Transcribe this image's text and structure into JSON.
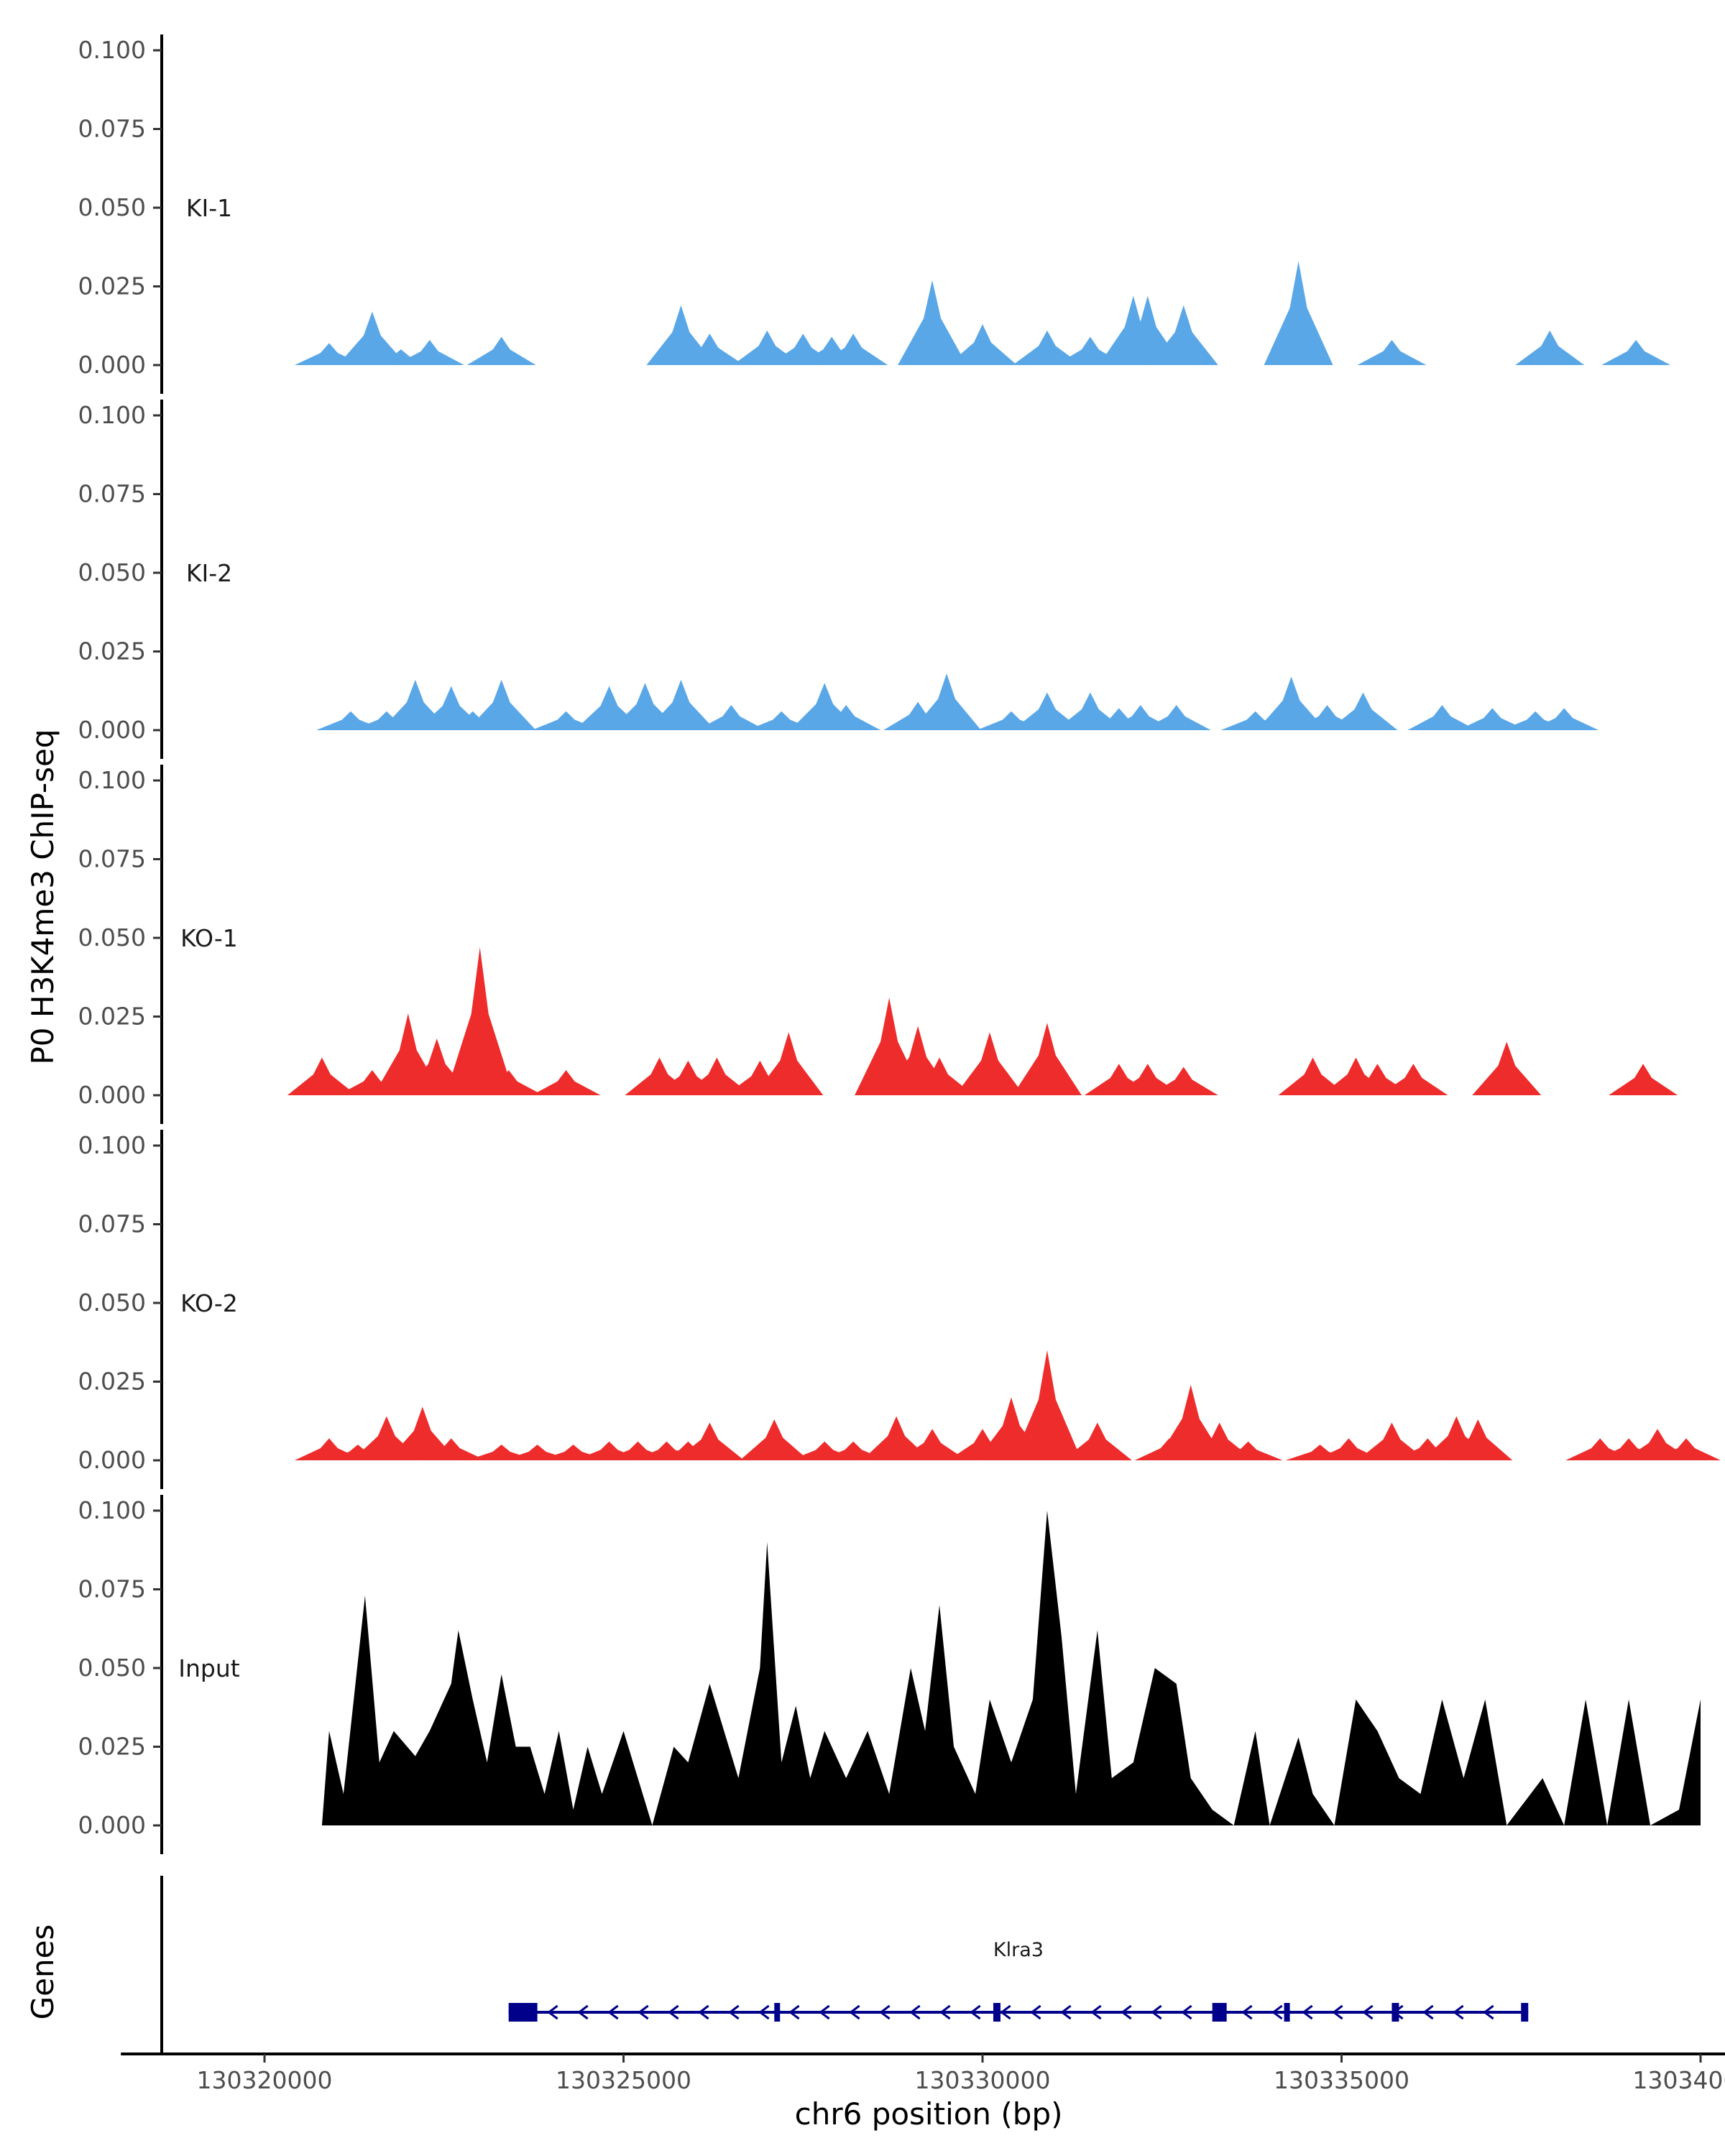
{
  "chart_data": {
    "type": "area",
    "ylabel": "P0 H3K4me3 ChIP-seq",
    "xlabel": "chr6 position (bp)",
    "genes_label": "Genes",
    "xlim": [
      130318000,
      130340500
    ],
    "ylim": [
      0,
      0.1
    ],
    "y_ticks": [
      0,
      0.025,
      0.05,
      0.075,
      0.1
    ],
    "y_tick_labels": [
      "0.000",
      "0.025",
      "0.050",
      "0.075",
      "0.100"
    ],
    "x_ticks": [
      130320000,
      130325000,
      130330000,
      130335000,
      130340000
    ],
    "x_tick_labels": [
      "130320000",
      "130325000",
      "130330000",
      "130335000",
      "130340000"
    ],
    "tracks": [
      {
        "name": "KI-1",
        "color": "#5aa7e8",
        "peaks": [
          [
            130320900,
            0.007
          ],
          [
            130321500,
            0.017
          ],
          [
            130321900,
            0.005
          ],
          [
            130322300,
            0.008
          ],
          [
            130323300,
            0.009
          ],
          [
            130325800,
            0.019
          ],
          [
            130326200,
            0.01
          ],
          [
            130327000,
            0.011
          ],
          [
            130327500,
            0.01
          ],
          [
            130327900,
            0.009
          ],
          [
            130328200,
            0.01
          ],
          [
            130329300,
            0.027
          ],
          [
            130330000,
            0.013
          ],
          [
            130330900,
            0.011
          ],
          [
            130331500,
            0.009
          ],
          [
            130332100,
            0.022
          ],
          [
            130332300,
            0.022
          ],
          [
            130332800,
            0.019
          ],
          [
            130334400,
            0.033
          ],
          [
            130335700,
            0.008
          ],
          [
            130337900,
            0.011
          ],
          [
            130339100,
            0.008
          ]
        ]
      },
      {
        "name": "KI-2",
        "color": "#5aa7e8",
        "peaks": [
          [
            130321200,
            0.006
          ],
          [
            130321700,
            0.006
          ],
          [
            130322100,
            0.016
          ],
          [
            130322600,
            0.014
          ],
          [
            130322900,
            0.006
          ],
          [
            130323300,
            0.016
          ],
          [
            130324200,
            0.006
          ],
          [
            130324800,
            0.014
          ],
          [
            130325300,
            0.015
          ],
          [
            130325800,
            0.016
          ],
          [
            130326500,
            0.008
          ],
          [
            130327200,
            0.006
          ],
          [
            130327800,
            0.015
          ],
          [
            130328100,
            0.008
          ],
          [
            130329100,
            0.009
          ],
          [
            130329500,
            0.018
          ],
          [
            130330400,
            0.006
          ],
          [
            130330900,
            0.012
          ],
          [
            130331500,
            0.012
          ],
          [
            130331900,
            0.007
          ],
          [
            130332200,
            0.008
          ],
          [
            130332700,
            0.008
          ],
          [
            130333800,
            0.006
          ],
          [
            130334300,
            0.017
          ],
          [
            130334800,
            0.008
          ],
          [
            130335300,
            0.012
          ],
          [
            130336400,
            0.008
          ],
          [
            130337100,
            0.007
          ],
          [
            130337700,
            0.006
          ],
          [
            130338100,
            0.007
          ]
        ]
      },
      {
        "name": "KO-1",
        "color": "#ee2c2c",
        "peaks": [
          [
            130320800,
            0.012
          ],
          [
            130321500,
            0.008
          ],
          [
            130322000,
            0.026
          ],
          [
            130322400,
            0.018
          ],
          [
            130323000,
            0.047
          ],
          [
            130323400,
            0.008
          ],
          [
            130324200,
            0.008
          ],
          [
            130325500,
            0.012
          ],
          [
            130325900,
            0.011
          ],
          [
            130326300,
            0.012
          ],
          [
            130326900,
            0.011
          ],
          [
            130327300,
            0.02
          ],
          [
            130328700,
            0.031
          ],
          [
            130329100,
            0.022
          ],
          [
            130329400,
            0.012
          ],
          [
            130330100,
            0.02
          ],
          [
            130330900,
            0.023
          ],
          [
            130331900,
            0.01
          ],
          [
            130332300,
            0.01
          ],
          [
            130332800,
            0.009
          ],
          [
            130334600,
            0.012
          ],
          [
            130335200,
            0.012
          ],
          [
            130335500,
            0.01
          ],
          [
            130336000,
            0.01
          ],
          [
            130337300,
            0.017
          ],
          [
            130339200,
            0.01
          ]
        ]
      },
      {
        "name": "KO-2",
        "color": "#ee2c2c",
        "peaks": [
          [
            130320900,
            0.007
          ],
          [
            130321300,
            0.005
          ],
          [
            130321700,
            0.014
          ],
          [
            130322200,
            0.017
          ],
          [
            130322600,
            0.007
          ],
          [
            130323300,
            0.005
          ],
          [
            130323800,
            0.005
          ],
          [
            130324300,
            0.005
          ],
          [
            130324800,
            0.006
          ],
          [
            130325200,
            0.006
          ],
          [
            130325600,
            0.006
          ],
          [
            130325900,
            0.006
          ],
          [
            130326200,
            0.012
          ],
          [
            130327100,
            0.013
          ],
          [
            130327800,
            0.006
          ],
          [
            130328200,
            0.006
          ],
          [
            130328800,
            0.014
          ],
          [
            130329300,
            0.01
          ],
          [
            130330000,
            0.01
          ],
          [
            130330400,
            0.02
          ],
          [
            130330900,
            0.035
          ],
          [
            130331600,
            0.012
          ],
          [
            130332600,
            0.007
          ],
          [
            130332900,
            0.024
          ],
          [
            130333300,
            0.012
          ],
          [
            130333700,
            0.006
          ],
          [
            130334700,
            0.005
          ],
          [
            130335100,
            0.007
          ],
          [
            130335700,
            0.012
          ],
          [
            130336200,
            0.007
          ],
          [
            130336600,
            0.014
          ],
          [
            130336900,
            0.013
          ],
          [
            130338600,
            0.007
          ],
          [
            130339000,
            0.007
          ],
          [
            130339400,
            0.01
          ],
          [
            130339800,
            0.007
          ]
        ]
      },
      {
        "name": "Input",
        "color": "#000000",
        "profile": [
          [
            130320800,
            0.0
          ],
          [
            130320900,
            0.03
          ],
          [
            130321100,
            0.01
          ],
          [
            130321400,
            0.073
          ],
          [
            130321600,
            0.02
          ],
          [
            130321800,
            0.03
          ],
          [
            130322100,
            0.022
          ],
          [
            130322300,
            0.03
          ],
          [
            130322600,
            0.045
          ],
          [
            130322700,
            0.062
          ],
          [
            130322900,
            0.04
          ],
          [
            130323100,
            0.02
          ],
          [
            130323300,
            0.048
          ],
          [
            130323500,
            0.025
          ],
          [
            130323700,
            0.025
          ],
          [
            130323900,
            0.01
          ],
          [
            130324100,
            0.03
          ],
          [
            130324300,
            0.005
          ],
          [
            130324500,
            0.025
          ],
          [
            130324700,
            0.01
          ],
          [
            130325000,
            0.03
          ],
          [
            130325400,
            0.0
          ],
          [
            130325700,
            0.025
          ],
          [
            130325900,
            0.02
          ],
          [
            130326200,
            0.045
          ],
          [
            130326600,
            0.015
          ],
          [
            130326900,
            0.05
          ],
          [
            130327000,
            0.09
          ],
          [
            130327200,
            0.02
          ],
          [
            130327400,
            0.038
          ],
          [
            130327600,
            0.015
          ],
          [
            130327800,
            0.03
          ],
          [
            130328100,
            0.015
          ],
          [
            130328400,
            0.03
          ],
          [
            130328700,
            0.01
          ],
          [
            130329000,
            0.05
          ],
          [
            130329200,
            0.03
          ],
          [
            130329400,
            0.07
          ],
          [
            130329600,
            0.025
          ],
          [
            130329900,
            0.01
          ],
          [
            130330100,
            0.04
          ],
          [
            130330400,
            0.02
          ],
          [
            130330700,
            0.04
          ],
          [
            130330900,
            0.1
          ],
          [
            130331100,
            0.06
          ],
          [
            130331300,
            0.01
          ],
          [
            130331600,
            0.062
          ],
          [
            130331800,
            0.015
          ],
          [
            130332100,
            0.02
          ],
          [
            130332400,
            0.05
          ],
          [
            130332700,
            0.045
          ],
          [
            130332900,
            0.015
          ],
          [
            130333200,
            0.005
          ],
          [
            130333500,
            0.0
          ],
          [
            130333800,
            0.03
          ],
          [
            130334000,
            0.0
          ],
          [
            130334400,
            0.028
          ],
          [
            130334600,
            0.01
          ],
          [
            130334900,
            0.0
          ],
          [
            130335200,
            0.04
          ],
          [
            130335500,
            0.03
          ],
          [
            130335800,
            0.015
          ],
          [
            130336100,
            0.01
          ],
          [
            130336400,
            0.04
          ],
          [
            130336700,
            0.015
          ],
          [
            130337000,
            0.04
          ],
          [
            130337300,
            0.0
          ],
          [
            130337800,
            0.015
          ],
          [
            130338100,
            0.0
          ],
          [
            130338400,
            0.04
          ],
          [
            130338700,
            0.0
          ],
          [
            130339000,
            0.04
          ],
          [
            130339300,
            0.0
          ],
          [
            130339700,
            0.005
          ],
          [
            130340000,
            0.04
          ],
          [
            130340000,
            0.0
          ]
        ]
      }
    ],
    "gene": {
      "name": "Klra3",
      "strand": "-",
      "color": "#00008b",
      "start": 130323400,
      "end": 130337600,
      "exons": [
        [
          130323400,
          130323800
        ],
        [
          130327100,
          130327150
        ],
        [
          130330150,
          130330250
        ],
        [
          130333200,
          130333400
        ],
        [
          130334200,
          130334250
        ],
        [
          130335700,
          130335800
        ],
        [
          130337500,
          130337600
        ]
      ]
    }
  }
}
